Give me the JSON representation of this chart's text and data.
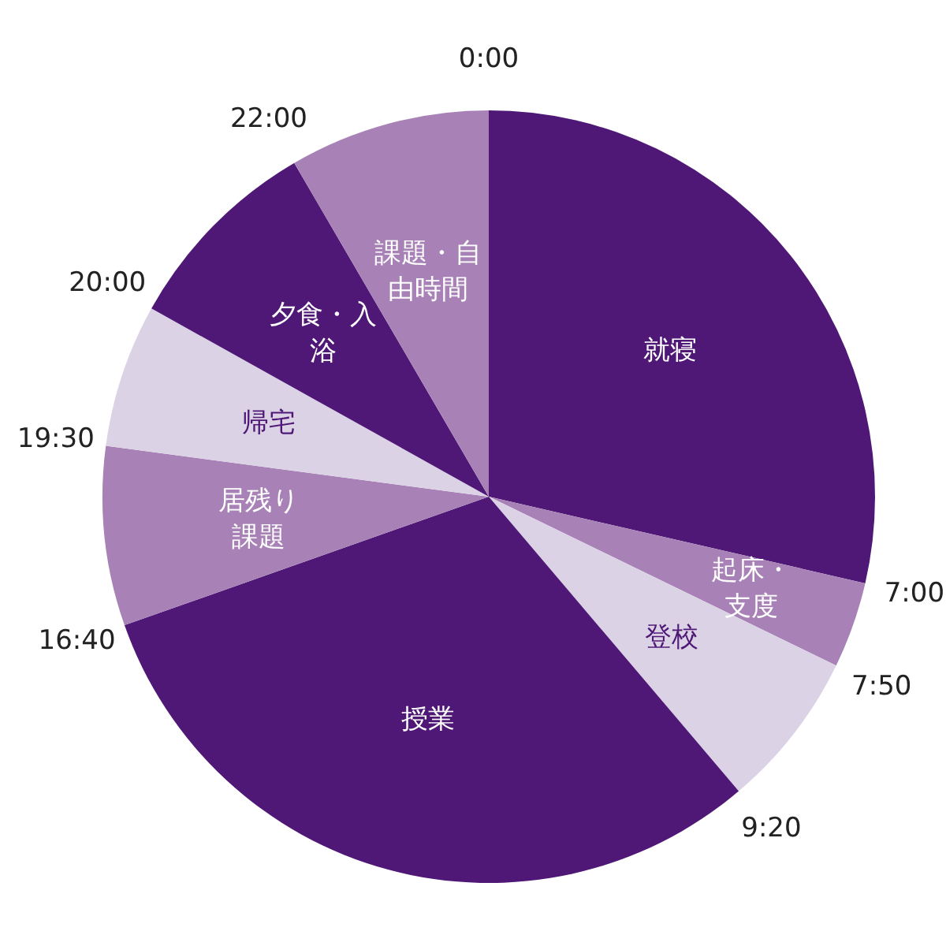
{
  "chart_data": {
    "type": "pie",
    "categories": [
      "就寝",
      "起床・支度",
      "登校",
      "授業",
      "居残り課題",
      "帰宅",
      "夕食・入浴",
      "課題・自由時間"
    ],
    "values": [
      28.6,
      3.6,
      6.6,
      30.8,
      7.5,
      6.0,
      8.5,
      8.4
    ],
    "colors": [
      "#4f1877",
      "#a882b7",
      "#dcd2e6",
      "#4f1877",
      "#a882b7",
      "#dcd2e6",
      "#4f1877",
      "#a882b7"
    ],
    "annotations": [
      "0:00",
      "7:00",
      "7:50",
      "9:20",
      "16:40",
      "19:30",
      "20:00",
      "22:00"
    ]
  }
}
